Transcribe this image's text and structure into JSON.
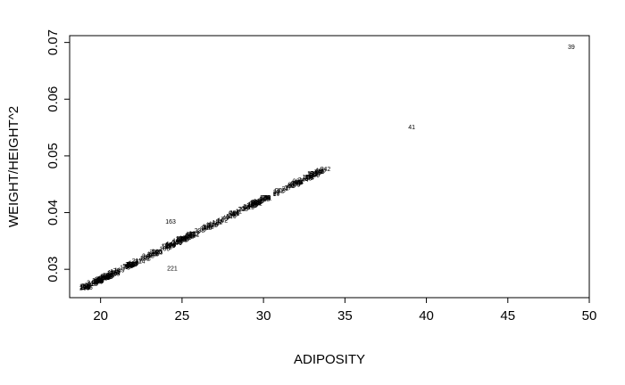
{
  "chart_data": {
    "type": "scatter",
    "xlabel": "ADIPOSITY",
    "ylabel": "WEIGHT/HEIGHT^2",
    "xlim": [
      18.1,
      50.0
    ],
    "ylim": [
      0.025,
      0.0712
    ],
    "xticks": [
      "20",
      "25",
      "30",
      "35",
      "40",
      "45",
      "50"
    ],
    "yticks": [
      "0.03",
      "0.04",
      "0.05",
      "0.06",
      "0.07"
    ],
    "labeled_points": [
      {
        "label": "39",
        "x": 48.9,
        "y": 0.0692
      },
      {
        "label": "41",
        "x": 39.1,
        "y": 0.0551
      },
      {
        "label": "242",
        "x": 33.8,
        "y": 0.0477
      },
      {
        "label": "175",
        "x": 33.0,
        "y": 0.0469
      },
      {
        "label": "205",
        "x": 32.1,
        "y": 0.0456
      },
      {
        "label": "163",
        "x": 24.3,
        "y": 0.0384
      },
      {
        "label": "221",
        "x": 24.4,
        "y": 0.0302
      },
      {
        "label": "45",
        "x": 19.3,
        "y": 0.0268
      }
    ],
    "trend": {
      "slope": 0.001412,
      "intercept": 0.0,
      "x_from": 19.0,
      "x_to": 33.6,
      "jitter": 0.0002
    }
  }
}
